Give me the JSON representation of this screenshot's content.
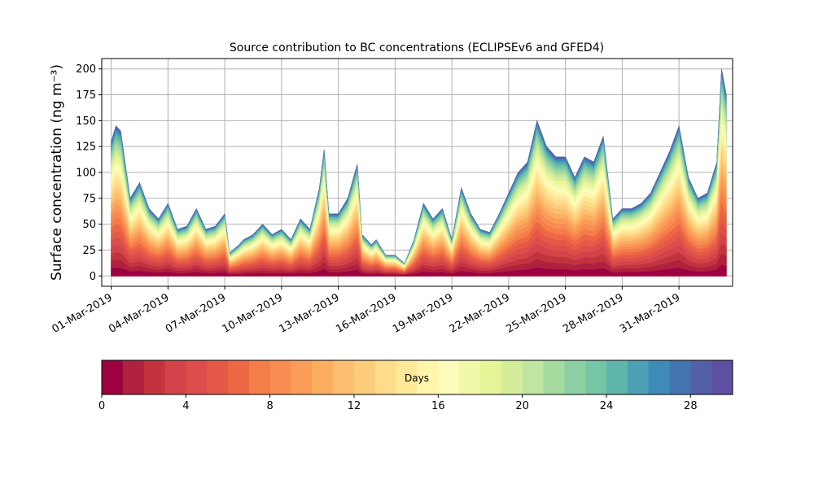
{
  "chart_data": {
    "type": "area",
    "stacked": true,
    "title": "Source contribution to BC concentrations (ECLIPSEv6 and GFED4)",
    "ylabel": "Surface concentration (ng m⁻³)",
    "xlabel": "",
    "ylim": [
      -10,
      210
    ],
    "yticks": [
      0,
      25,
      50,
      75,
      100,
      125,
      150,
      175,
      200
    ],
    "x_start": "2019-03-01",
    "x_end": "2019-04-02",
    "xlim": [
      "2019-02-28T12:00",
      "2019-04-02T20:00"
    ],
    "xticks": [
      "01-Mar-2019",
      "04-Mar-2019",
      "07-Mar-2019",
      "10-Mar-2019",
      "13-Mar-2019",
      "16-Mar-2019",
      "19-Mar-2019",
      "22-Mar-2019",
      "25-Mar-2019",
      "28-Mar-2019",
      "31-Mar-2019"
    ],
    "grid": true,
    "total": [
      [
        "2019-03-01",
        130
      ],
      [
        "2019-03-01T06",
        145
      ],
      [
        "2019-03-01T12",
        140
      ],
      [
        "2019-03-02",
        75
      ],
      [
        "2019-03-02T12",
        90
      ],
      [
        "2019-03-03",
        65
      ],
      [
        "2019-03-03T12",
        55
      ],
      [
        "2019-03-04",
        70
      ],
      [
        "2019-03-04T12",
        45
      ],
      [
        "2019-03-05",
        48
      ],
      [
        "2019-03-05T12",
        65
      ],
      [
        "2019-03-06",
        45
      ],
      [
        "2019-03-06T12",
        48
      ],
      [
        "2019-03-07",
        60
      ],
      [
        "2019-03-07T06",
        22
      ],
      [
        "2019-03-07T18",
        30
      ],
      [
        "2019-03-08",
        35
      ],
      [
        "2019-03-08T12",
        40
      ],
      [
        "2019-03-09",
        50
      ],
      [
        "2019-03-09T12",
        40
      ],
      [
        "2019-03-10",
        45
      ],
      [
        "2019-03-10T12",
        35
      ],
      [
        "2019-03-11",
        55
      ],
      [
        "2019-03-11T12",
        45
      ],
      [
        "2019-03-12",
        85
      ],
      [
        "2019-03-12T06",
        122
      ],
      [
        "2019-03-12T12",
        60
      ],
      [
        "2019-03-13",
        60
      ],
      [
        "2019-03-13T12",
        75
      ],
      [
        "2019-03-14",
        108
      ],
      [
        "2019-03-14T06",
        40
      ],
      [
        "2019-03-14T18",
        30
      ],
      [
        "2019-03-15",
        35
      ],
      [
        "2019-03-15T12",
        20
      ],
      [
        "2019-03-16",
        20
      ],
      [
        "2019-03-16T12",
        12
      ],
      [
        "2019-03-17",
        35
      ],
      [
        "2019-03-17T12",
        70
      ],
      [
        "2019-03-18",
        55
      ],
      [
        "2019-03-18T12",
        65
      ],
      [
        "2019-03-19",
        35
      ],
      [
        "2019-03-19T12",
        85
      ],
      [
        "2019-03-20",
        60
      ],
      [
        "2019-03-20T12",
        45
      ],
      [
        "2019-03-21",
        42
      ],
      [
        "2019-03-21T12",
        60
      ],
      [
        "2019-03-22",
        80
      ],
      [
        "2019-03-22T12",
        100
      ],
      [
        "2019-03-23",
        110
      ],
      [
        "2019-03-23T12",
        150
      ],
      [
        "2019-03-24",
        125
      ],
      [
        "2019-03-24T12",
        115
      ],
      [
        "2019-03-25",
        115
      ],
      [
        "2019-03-25T12",
        95
      ],
      [
        "2019-03-26",
        115
      ],
      [
        "2019-03-26T12",
        110
      ],
      [
        "2019-03-27",
        135
      ],
      [
        "2019-03-27T12",
        55
      ],
      [
        "2019-03-28",
        65
      ],
      [
        "2019-03-28T12",
        65
      ],
      [
        "2019-03-29",
        70
      ],
      [
        "2019-03-29T12",
        80
      ],
      [
        "2019-03-30",
        100
      ],
      [
        "2019-03-30T12",
        120
      ],
      [
        "2019-03-31",
        145
      ],
      [
        "2019-03-31T12",
        95
      ],
      [
        "2019-04-01",
        75
      ],
      [
        "2019-04-01T12",
        80
      ],
      [
        "2019-04-02",
        110
      ],
      [
        "2019-04-02T06",
        200
      ],
      [
        "2019-04-02T12",
        175
      ]
    ],
    "colorbar": {
      "label": "Days",
      "min": 0,
      "max": 30,
      "levels": 30,
      "ticks": [
        0,
        4,
        8,
        12,
        16,
        20,
        24,
        28
      ],
      "colormap": "Spectral",
      "colors": [
        "#9e0142",
        "#b0203f",
        "#c2333e",
        "#d3434a",
        "#dc4d4b",
        "#e45a47",
        "#ee6744",
        "#f47d4a",
        "#f78d52",
        "#fa9c58",
        "#fcae60",
        "#fdbf6f",
        "#fdcd7c",
        "#fedc8a",
        "#fee999",
        "#fff5ab",
        "#fbfcb9",
        "#f1f9a9",
        "#e6f598",
        "#d4ed9b",
        "#bfe5a0",
        "#a6db9f",
        "#8cd0a4",
        "#75c5a6",
        "#5fb4ac",
        "#4da0b4",
        "#3f8ab8",
        "#4474b2",
        "#5360a8",
        "#5e4fa2"
      ]
    }
  }
}
